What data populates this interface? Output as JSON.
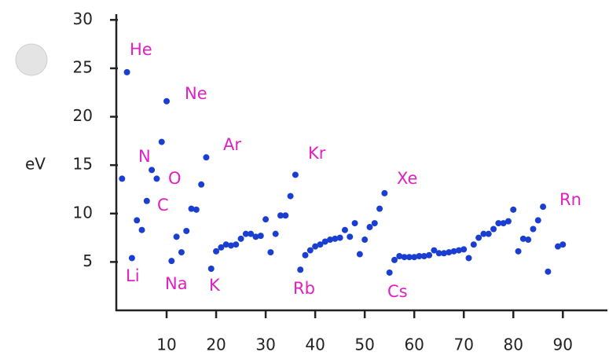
{
  "chart_data": {
    "type": "scatter",
    "y_label": "eV",
    "color": "#1a3fd0",
    "x": [
      1,
      2,
      3,
      4,
      5,
      6,
      7,
      8,
      9,
      10,
      11,
      12,
      13,
      14,
      15,
      16,
      17,
      18,
      19,
      20,
      21,
      22,
      23,
      24,
      25,
      26,
      27,
      28,
      29,
      30,
      31,
      32,
      33,
      34,
      35,
      36,
      37,
      38,
      39,
      40,
      41,
      42,
      43,
      44,
      45,
      46,
      47,
      48,
      49,
      50,
      51,
      52,
      53,
      54,
      55,
      56,
      57,
      58,
      59,
      60,
      61,
      62,
      63,
      64,
      65,
      66,
      67,
      68,
      69,
      70,
      71,
      72,
      73,
      74,
      75,
      76,
      77,
      78,
      79,
      80,
      81,
      82,
      83,
      84,
      85,
      86,
      87,
      89,
      90
    ],
    "values": [
      13.6,
      24.6,
      5.4,
      9.3,
      8.3,
      11.3,
      14.5,
      13.6,
      17.4,
      21.6,
      5.1,
      7.6,
      6.0,
      8.2,
      10.5,
      10.4,
      13.0,
      15.8,
      4.3,
      6.1,
      6.5,
      6.8,
      6.7,
      6.8,
      7.4,
      7.9,
      7.9,
      7.6,
      7.7,
      9.4,
      6.0,
      7.9,
      9.8,
      9.8,
      11.8,
      14.0,
      4.2,
      5.7,
      6.2,
      6.6,
      6.8,
      7.1,
      7.3,
      7.4,
      7.5,
      8.3,
      7.6,
      9.0,
      5.8,
      7.3,
      8.6,
      9.0,
      10.5,
      12.1,
      3.9,
      5.2,
      5.6,
      5.5,
      5.5,
      5.5,
      5.6,
      5.6,
      5.7,
      6.2,
      5.9,
      5.9,
      6.0,
      6.1,
      6.2,
      6.3,
      5.4,
      6.8,
      7.5,
      7.9,
      7.9,
      8.4,
      9.0,
      9.0,
      9.2,
      10.4,
      6.1,
      7.4,
      7.3,
      8.4,
      9.3,
      10.7,
      4.0,
      6.6,
      6.8
    ],
    "annotation_color": "#e020c0",
    "annotations": [
      "He",
      "Ne",
      "N",
      "O",
      "C",
      "Ar",
      "Kr",
      "Xe",
      "Rn",
      "Li",
      "Na",
      "K",
      "Rb",
      "Cs"
    ],
    "xlim": [
      0,
      99
    ],
    "xticks": [
      10,
      20,
      30,
      40,
      50,
      60,
      70,
      80,
      90
    ],
    "ylim": [
      0,
      31
    ],
    "yticks": [
      5,
      10,
      15,
      20,
      25,
      30
    ]
  }
}
